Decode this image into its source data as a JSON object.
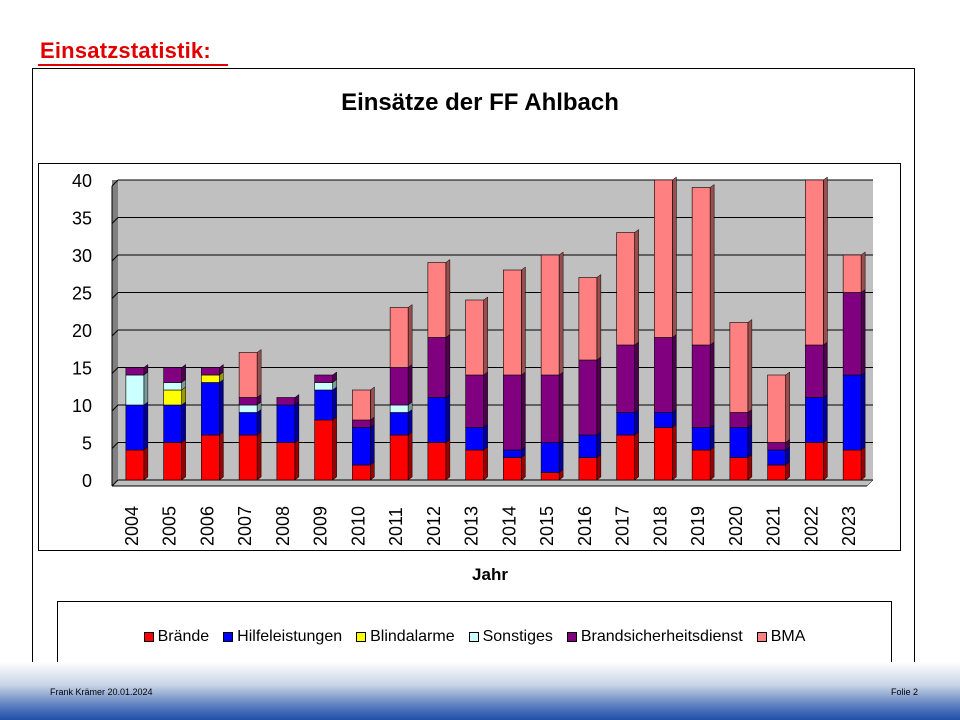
{
  "slide": {
    "title": "Einsatzstatistik:",
    "footer_left": "Frank Krämer 20.01.2024",
    "footer_right": "Folie 2"
  },
  "chart_data": {
    "type": "bar",
    "stacked": true,
    "title": "Einsätze der FF Ahlbach",
    "xlabel": "Jahr",
    "ylabel": "",
    "ylim": [
      0,
      40
    ],
    "yticks": [
      0,
      5,
      10,
      15,
      20,
      25,
      30,
      35,
      40
    ],
    "grid": true,
    "legend_position": "bottom",
    "categories": [
      "2004",
      "2005",
      "2006",
      "2007",
      "2008",
      "2009",
      "2010",
      "2011",
      "2012",
      "2013",
      "2014",
      "2015",
      "2016",
      "2017",
      "2018",
      "2019",
      "2020",
      "2021",
      "2022",
      "2023"
    ],
    "series": [
      {
        "name": "Brände",
        "color": "#ff0000",
        "values": [
          4,
          5,
          6,
          6,
          5,
          8,
          2,
          6,
          5,
          4,
          3,
          1,
          3,
          6,
          7,
          4,
          3,
          2,
          5,
          4
        ]
      },
      {
        "name": "Hilfeleistungen",
        "color": "#0000ff",
        "values": [
          6,
          5,
          7,
          3,
          5,
          4,
          5,
          3,
          6,
          3,
          1,
          4,
          3,
          3,
          2,
          3,
          4,
          2,
          6,
          10
        ]
      },
      {
        "name": "Blindalarme",
        "color": "#ffff00",
        "values": [
          0,
          2,
          1,
          0,
          0,
          0,
          0,
          0,
          0,
          0,
          0,
          0,
          0,
          0,
          0,
          0,
          0,
          0,
          0,
          0
        ]
      },
      {
        "name": "Sonstiges",
        "color": "#ccffff",
        "values": [
          4,
          1,
          0,
          1,
          0,
          1,
          0,
          1,
          0,
          0,
          0,
          0,
          0,
          0,
          0,
          0,
          0,
          0,
          0,
          0
        ]
      },
      {
        "name": "Brandsicherheitsdienst",
        "color": "#800080",
        "values": [
          1,
          2,
          1,
          1,
          1,
          1,
          1,
          5,
          8,
          7,
          10,
          9,
          10,
          9,
          10,
          11,
          2,
          1,
          7,
          11
        ]
      },
      {
        "name": "BMA",
        "color": "#ff8080",
        "values": [
          0,
          0,
          0,
          6,
          0,
          0,
          4,
          8,
          10,
          10,
          14,
          16,
          11,
          15,
          21,
          21,
          12,
          9,
          22,
          5
        ]
      }
    ]
  }
}
